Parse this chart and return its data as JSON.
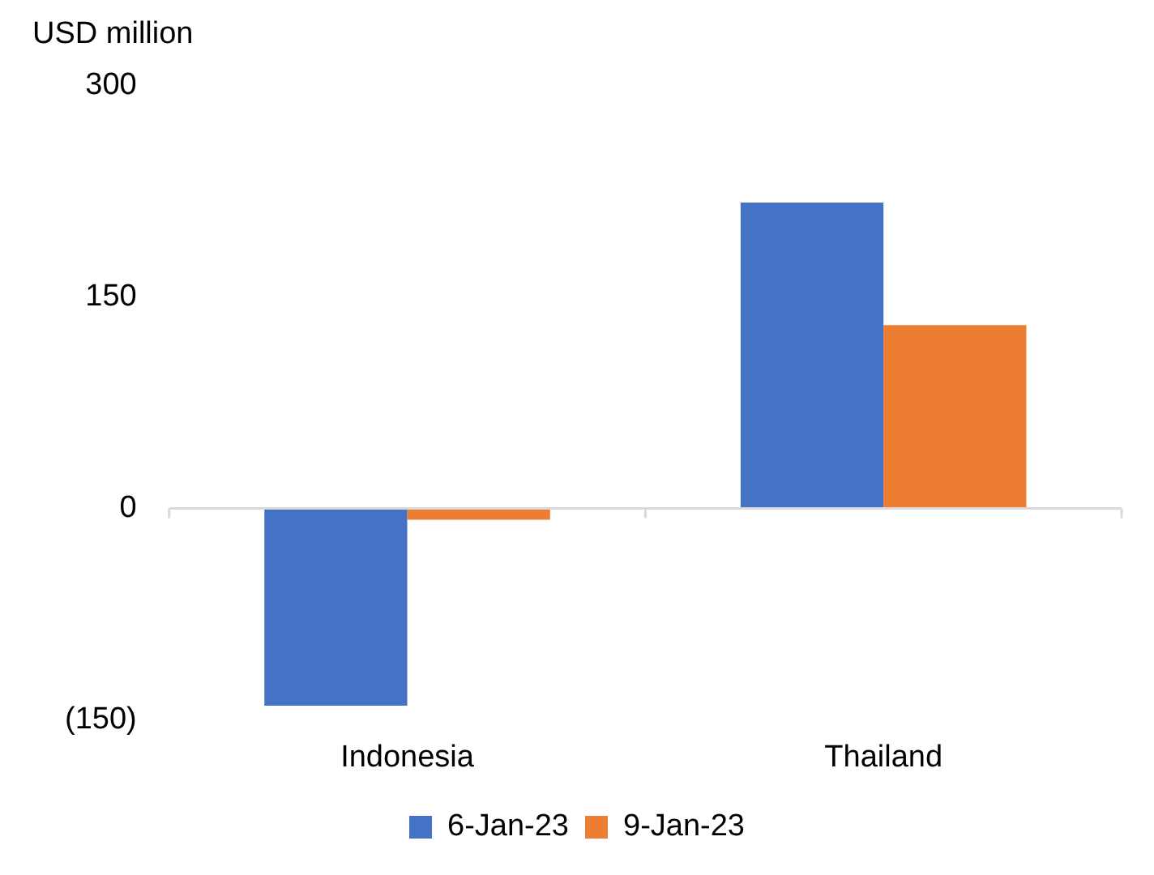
{
  "chart_data": {
    "type": "bar",
    "ylabel": "USD million",
    "categories": [
      "Indonesia",
      "Thailand"
    ],
    "series": [
      {
        "name": "6-Jan-23",
        "color": "#4472c4",
        "values": [
          -140,
          217
        ]
      },
      {
        "name": "9-Jan-23",
        "color": "#ed7d31",
        "values": [
          -8,
          130
        ]
      }
    ],
    "ylim": [
      -150,
      300
    ],
    "yticks": [
      {
        "value": -150,
        "label": "(150)"
      },
      0,
      150,
      300
    ],
    "grid": false,
    "legend": "bottom",
    "ref_lines": [
      {
        "axis": "y",
        "value": 0,
        "color": "#d9d9d9"
      }
    ]
  }
}
